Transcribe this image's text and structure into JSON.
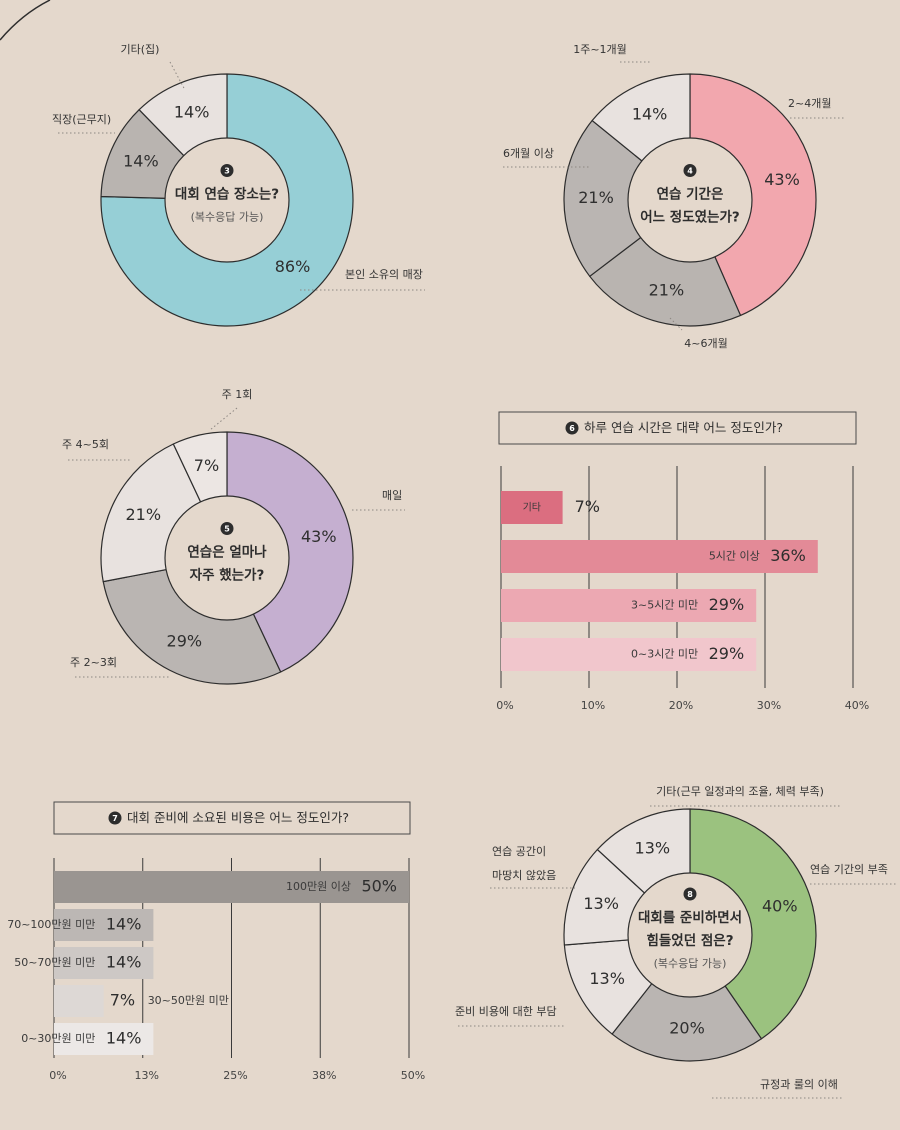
{
  "chart_data": [
    {
      "type": "pie",
      "badge": "3",
      "title": [
        "대회 연습 장소는?",
        "(복수응답 가능)"
      ],
      "slices": [
        {
          "label": "본인 소유의 매장",
          "value": 86,
          "display": "86%",
          "color": "#96cfd6"
        },
        {
          "label": "직장(근무지)",
          "value": 14,
          "display": "14%",
          "color": "#b9b4b0"
        },
        {
          "label": "기타(집)",
          "value": 14,
          "display": "14%",
          "color": "#e8e2df"
        }
      ]
    },
    {
      "type": "pie",
      "badge": "4",
      "title": [
        "연습 기간은",
        "어느 정도였는가?"
      ],
      "slices": [
        {
          "label": "2~4개월",
          "value": 43,
          "display": "43%",
          "color": "#f2a7ae"
        },
        {
          "label": "4~6개월",
          "value": 21,
          "display": "21%",
          "color": "#b9b4b0"
        },
        {
          "label": "6개월 이상",
          "value": 21,
          "display": "21%",
          "color": "#bab5b2"
        },
        {
          "label": "1주~1개월",
          "value": 14,
          "display": "14%",
          "color": "#e8e2df"
        }
      ]
    },
    {
      "type": "pie",
      "badge": "5",
      "title": [
        "연습은 얼마나",
        "자주 했는가?"
      ],
      "slices": [
        {
          "label": "매일",
          "value": 43,
          "display": "43%",
          "color": "#c5afd0"
        },
        {
          "label": "주 2~3회",
          "value": 29,
          "display": "29%",
          "color": "#bab5b2"
        },
        {
          "label": "주 4~5회",
          "value": 21,
          "display": "21%",
          "color": "#e8e2df"
        },
        {
          "label": "주 1회",
          "value": 7,
          "display": "7%",
          "color": "#ece6e3"
        }
      ]
    },
    {
      "type": "bar",
      "badge": "6",
      "title": "하루 연습 시간은 대략 어느 정도인가?",
      "xlim": [
        0,
        40
      ],
      "ticks": [
        "0%",
        "10%",
        "20%",
        "30%",
        "40%"
      ],
      "categories": [
        "기타",
        "5시간 이상",
        "3~5시간 미만",
        "0~3시간 미만"
      ],
      "values": [
        7,
        36,
        29,
        29
      ],
      "display": [
        "7%",
        "36%",
        "29%",
        "29%"
      ],
      "colors": [
        "#db6e80",
        "#e38a97",
        "#eca8b2",
        "#f1c6cc"
      ]
    },
    {
      "type": "bar",
      "badge": "7",
      "title": "대회 준비에 소요된 비용은 어느 정도인가?",
      "xlim": [
        0,
        50
      ],
      "ticks": [
        "0%",
        "13%",
        "25%",
        "38%",
        "50%"
      ],
      "categories": [
        "100만원 이상",
        "70~100만원 미만",
        "50~70만원 미만",
        "30~50만원 미만",
        "0~30만원 미만"
      ],
      "values": [
        50,
        14,
        14,
        7,
        14
      ],
      "display": [
        "50%",
        "14%",
        "14%",
        "7%",
        "14%"
      ],
      "colors": [
        "#9a9591",
        "#bcb7b4",
        "#cdc8c5",
        "#ddd8d5",
        "#ece8e6"
      ]
    },
    {
      "type": "pie",
      "badge": "8",
      "title": [
        "대회를 준비하면서",
        "힘들었던 점은?",
        "(복수응답 가능)"
      ],
      "slices": [
        {
          "label": "연습 기간의 부족",
          "value": 40,
          "display": "40%",
          "color": "#9bc27f"
        },
        {
          "label": "규정과 룰의 이해",
          "value": 20,
          "display": "20%",
          "color": "#bab5b2"
        },
        {
          "label": "준비 비용에 대한 부담",
          "value": 13,
          "display": "13%",
          "color": "#e8e2df"
        },
        {
          "label": "연습 공간이 마땅치 않았음",
          "value": 13,
          "display": "13%",
          "color": "#e8e2df"
        },
        {
          "label": "기타(근무 일정과의 조율, 체력 부족)",
          "value": 13,
          "display": "13%",
          "color": "#e8e2df"
        }
      ]
    }
  ]
}
